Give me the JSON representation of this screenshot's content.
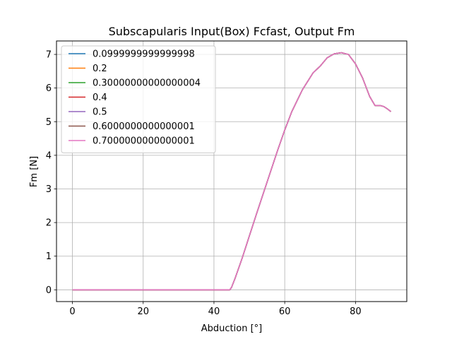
{
  "chart_data": {
    "type": "line",
    "title": "Subscapularis Input(Box) Fcfast, Output Fm",
    "xlabel": "Abduction [°]",
    "ylabel": "Fm [N]",
    "xlim": [
      -4.5,
      94.5
    ],
    "ylim": [
      -0.35,
      7.4
    ],
    "xticks": [
      0,
      20,
      40,
      60,
      80
    ],
    "yticks": [
      0,
      1,
      2,
      3,
      4,
      5,
      6,
      7
    ],
    "grid": true,
    "legend_position": "upper-left",
    "x": [
      0,
      5,
      10,
      15,
      20,
      25,
      30,
      35,
      40,
      44.5,
      45,
      46,
      48,
      50,
      52,
      55,
      58,
      60,
      62,
      65,
      68,
      70,
      72,
      74,
      76,
      78,
      80,
      82,
      84,
      85.5,
      87,
      88,
      89,
      90
    ],
    "y": [
      0,
      0,
      0,
      0,
      0,
      0,
      0,
      0,
      0,
      0,
      0.08,
      0.35,
      0.95,
      1.6,
      2.25,
      3.2,
      4.15,
      4.75,
      5.3,
      5.95,
      6.45,
      6.65,
      6.9,
      7.02,
      7.05,
      7.0,
      6.72,
      6.3,
      5.75,
      5.48,
      5.48,
      5.45,
      5.38,
      5.3
    ],
    "series": [
      {
        "name": "0.0999999999999998",
        "color": "#1f77b4"
      },
      {
        "name": "0.2",
        "color": "#ff7f0e"
      },
      {
        "name": "0.30000000000000004",
        "color": "#2ca02c"
      },
      {
        "name": "0.4",
        "color": "#d62728"
      },
      {
        "name": "0.5",
        "color": "#9467bd"
      },
      {
        "name": "0.6000000000000001",
        "color": "#8c564b"
      },
      {
        "name": "0.7000000000000001",
        "color": "#e377c2"
      }
    ]
  }
}
